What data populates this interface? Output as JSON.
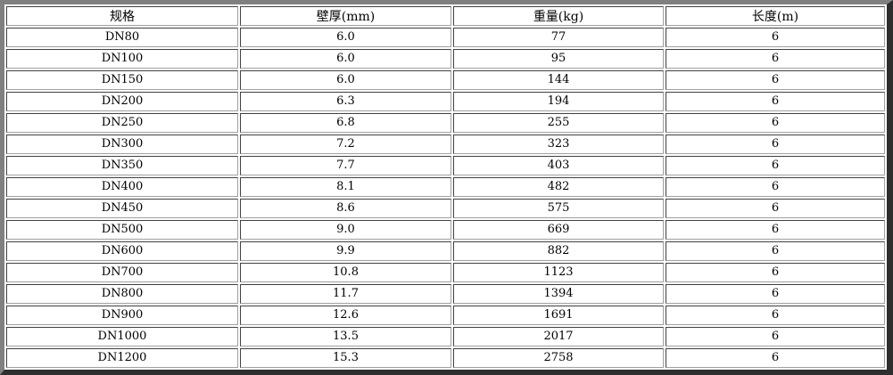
{
  "table": {
    "headers": [
      "规格",
      "壁厚(mm)",
      "重量(kg)",
      "长度(m)"
    ],
    "rows": [
      [
        "DN80",
        "6.0",
        "77",
        "6"
      ],
      [
        "DN100",
        "6.0",
        "95",
        "6"
      ],
      [
        "DN150",
        "6.0",
        "144",
        "6"
      ],
      [
        "DN200",
        "6.3",
        "194",
        "6"
      ],
      [
        "DN250",
        "6.8",
        "255",
        "6"
      ],
      [
        "DN300",
        "7.2",
        "323",
        "6"
      ],
      [
        "DN350",
        "7.7",
        "403",
        "6"
      ],
      [
        "DN400",
        "8.1",
        "482",
        "6"
      ],
      [
        "DN450",
        "8.6",
        "575",
        "6"
      ],
      [
        "DN500",
        "9.0",
        "669",
        "6"
      ],
      [
        "DN600",
        "9.9",
        "882",
        "6"
      ],
      [
        "DN700",
        "10.8",
        "1123",
        "6"
      ],
      [
        "DN800",
        "11.7",
        "1394",
        "6"
      ],
      [
        "DN900",
        "12.6",
        "1691",
        "6"
      ],
      [
        "DN1000",
        "13.5",
        "2017",
        "6"
      ],
      [
        "DN1200",
        "15.3",
        "2758",
        "6"
      ]
    ]
  }
}
